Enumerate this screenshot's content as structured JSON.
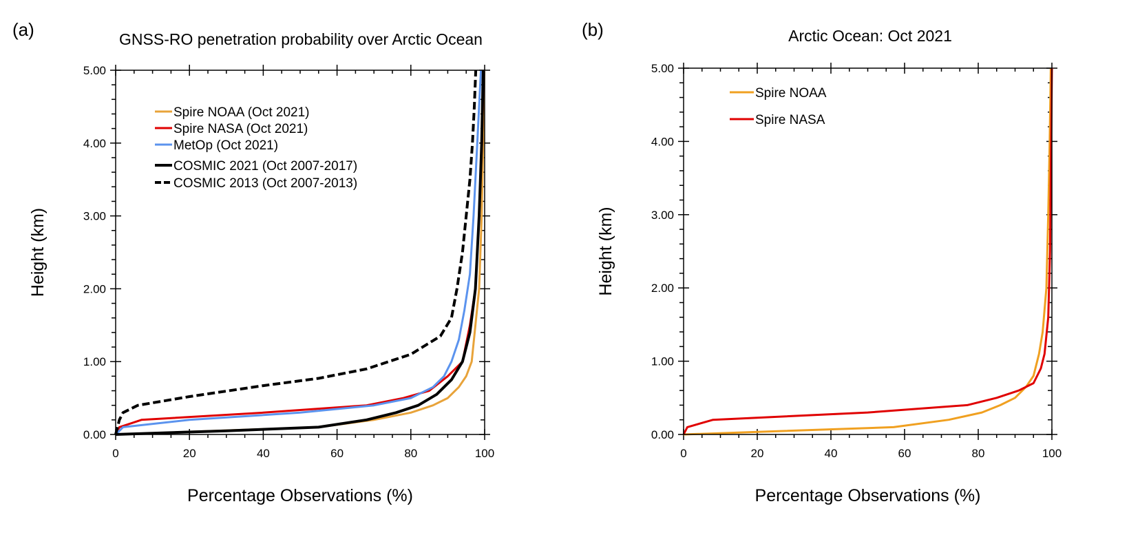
{
  "chart_data": [
    {
      "panel_label": "(a)",
      "type": "line",
      "title": "GNSS-RO penetration probability over Arctic Ocean",
      "xlabel": "Percentage Observations (%)",
      "ylabel": "Height (km)",
      "xlim": [
        0,
        100
      ],
      "ylim": [
        0,
        5
      ],
      "xticks": [
        "0",
        "20",
        "40",
        "60",
        "80",
        "100"
      ],
      "yticks": [
        "0.00",
        "1.00",
        "2.00",
        "3.00",
        "4.00",
        "5.00"
      ],
      "grid": false,
      "legend_placement": "top-left",
      "series": [
        {
          "name": "Spire NOAA (Oct 2021)",
          "color": "#E8A33A",
          "dash": false,
          "width": 3,
          "x": [
            0,
            55,
            70,
            80,
            86,
            90,
            93,
            95,
            96.5,
            97.5,
            98.5,
            99.2,
            99.6,
            99.9
          ],
          "y": [
            0,
            0.1,
            0.2,
            0.3,
            0.4,
            0.5,
            0.65,
            0.8,
            1.0,
            1.5,
            2.0,
            3.0,
            4.0,
            5.0
          ]
        },
        {
          "name": "Spire NASA (Oct 2021)",
          "color": "#E00000",
          "dash": false,
          "width": 3,
          "x": [
            0,
            1,
            7,
            40,
            68,
            78,
            85,
            90,
            94,
            96,
            97.5,
            98.5,
            99.3,
            99.7
          ],
          "y": [
            0,
            0.1,
            0.2,
            0.3,
            0.4,
            0.5,
            0.6,
            0.8,
            1.0,
            1.5,
            2.0,
            3.0,
            4.0,
            5.0
          ]
        },
        {
          "name": "MetOp (Oct 2021)",
          "color": "#5B93EE",
          "dash": false,
          "width": 3,
          "x": [
            0,
            2,
            20,
            50,
            70,
            80,
            86,
            89,
            91,
            93,
            94.5,
            96,
            97,
            98,
            99
          ],
          "y": [
            0,
            0.1,
            0.2,
            0.3,
            0.4,
            0.5,
            0.65,
            0.8,
            1.0,
            1.3,
            1.7,
            2.2,
            3.0,
            4.0,
            5.0
          ]
        },
        {
          "name": "COSMIC 2021 (Oct 2007-2017)",
          "color": "#000000",
          "dash": false,
          "width": 4,
          "x": [
            0,
            30,
            55,
            68,
            76,
            82,
            87,
            91,
            94,
            96,
            97.5,
            98.5,
            99.2,
            99.6
          ],
          "y": [
            0,
            0.05,
            0.1,
            0.2,
            0.3,
            0.4,
            0.55,
            0.75,
            1.0,
            1.4,
            2.0,
            3.0,
            4.0,
            5.0
          ]
        },
        {
          "name": "COSMIC 2013 (Oct 2007-2013)",
          "color": "#000000",
          "dash": true,
          "width": 4,
          "x": [
            0,
            1,
            2,
            6,
            20,
            40,
            55,
            68,
            80,
            88,
            91,
            92.5,
            94,
            95,
            96,
            96.7,
            97.2,
            97.6
          ],
          "y": [
            0,
            0.2,
            0.3,
            0.4,
            0.52,
            0.67,
            0.77,
            0.9,
            1.1,
            1.35,
            1.6,
            2.0,
            2.5,
            3.0,
            3.5,
            4.0,
            4.5,
            5.0
          ]
        }
      ]
    },
    {
      "panel_label": "(b)",
      "type": "line",
      "title": "Arctic Ocean: Oct 2021",
      "xlabel": "Percentage Observations (%)",
      "ylabel": "Height (km)",
      "xlim": [
        0,
        100
      ],
      "ylim": [
        0,
        5
      ],
      "xticks": [
        "0",
        "20",
        "40",
        "60",
        "80",
        "100"
      ],
      "yticks": [
        "0.00",
        "1.00",
        "2.00",
        "3.00",
        "4.00",
        "5.00"
      ],
      "grid": false,
      "legend_placement": "top-left",
      "series": [
        {
          "name": "Spire NOAA",
          "color": "#F0A020",
          "dash": false,
          "width": 3,
          "x": [
            0,
            57,
            72,
            81,
            86,
            90,
            93,
            95,
            96.5,
            97.5,
            98.5,
            99,
            99.4,
            99.7
          ],
          "y": [
            0,
            0.1,
            0.2,
            0.3,
            0.4,
            0.5,
            0.65,
            0.8,
            1.1,
            1.4,
            2.0,
            3.0,
            4.0,
            5.0
          ]
        },
        {
          "name": "Spire NASA",
          "color": "#E00000",
          "dash": false,
          "width": 3,
          "x": [
            0,
            1,
            8,
            50,
            77,
            85,
            91,
            95,
            97,
            98,
            99,
            99.5,
            99.8,
            100
          ],
          "y": [
            0,
            0.1,
            0.2,
            0.3,
            0.4,
            0.5,
            0.6,
            0.7,
            0.9,
            1.1,
            1.6,
            2.5,
            4.0,
            5.0
          ]
        }
      ]
    }
  ]
}
